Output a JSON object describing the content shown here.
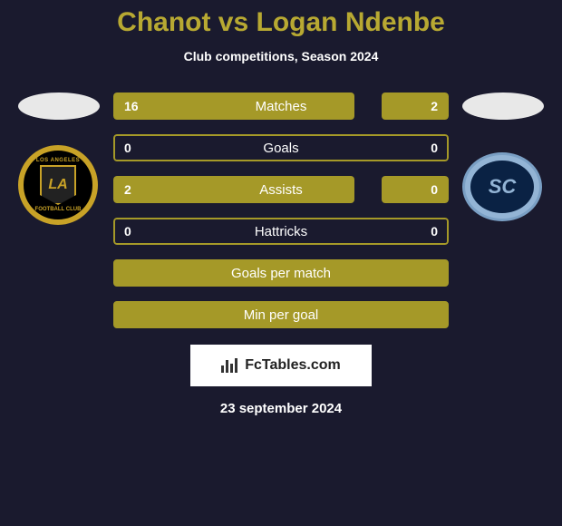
{
  "title": "Chanot vs Logan Ndenbe",
  "subtitle": "Club competitions, Season 2024",
  "colors": {
    "background": "#1a1a2e",
    "accent": "#b8a932",
    "bar": "#a59928",
    "text": "#ffffff"
  },
  "player_left": {
    "club": "LAFC",
    "club_name": "Los Angeles Football Club"
  },
  "player_right": {
    "club": "Sporting KC",
    "club_abbrev": "SC"
  },
  "stats": [
    {
      "label": "Matches",
      "left_value": "16",
      "right_value": "2",
      "left_pct": 72,
      "right_pct": 20,
      "has_border": false
    },
    {
      "label": "Goals",
      "left_value": "0",
      "right_value": "0",
      "left_pct": 0,
      "right_pct": 0,
      "has_border": true
    },
    {
      "label": "Assists",
      "left_value": "2",
      "right_value": "0",
      "left_pct": 72,
      "right_pct": 20,
      "has_border": false
    },
    {
      "label": "Hattricks",
      "left_value": "0",
      "right_value": "0",
      "left_pct": 0,
      "right_pct": 0,
      "has_border": true
    }
  ],
  "full_stats": [
    {
      "label": "Goals per match"
    },
    {
      "label": "Min per goal"
    }
  ],
  "footer": {
    "brand": "FcTables.com",
    "date": "23 september 2024"
  }
}
